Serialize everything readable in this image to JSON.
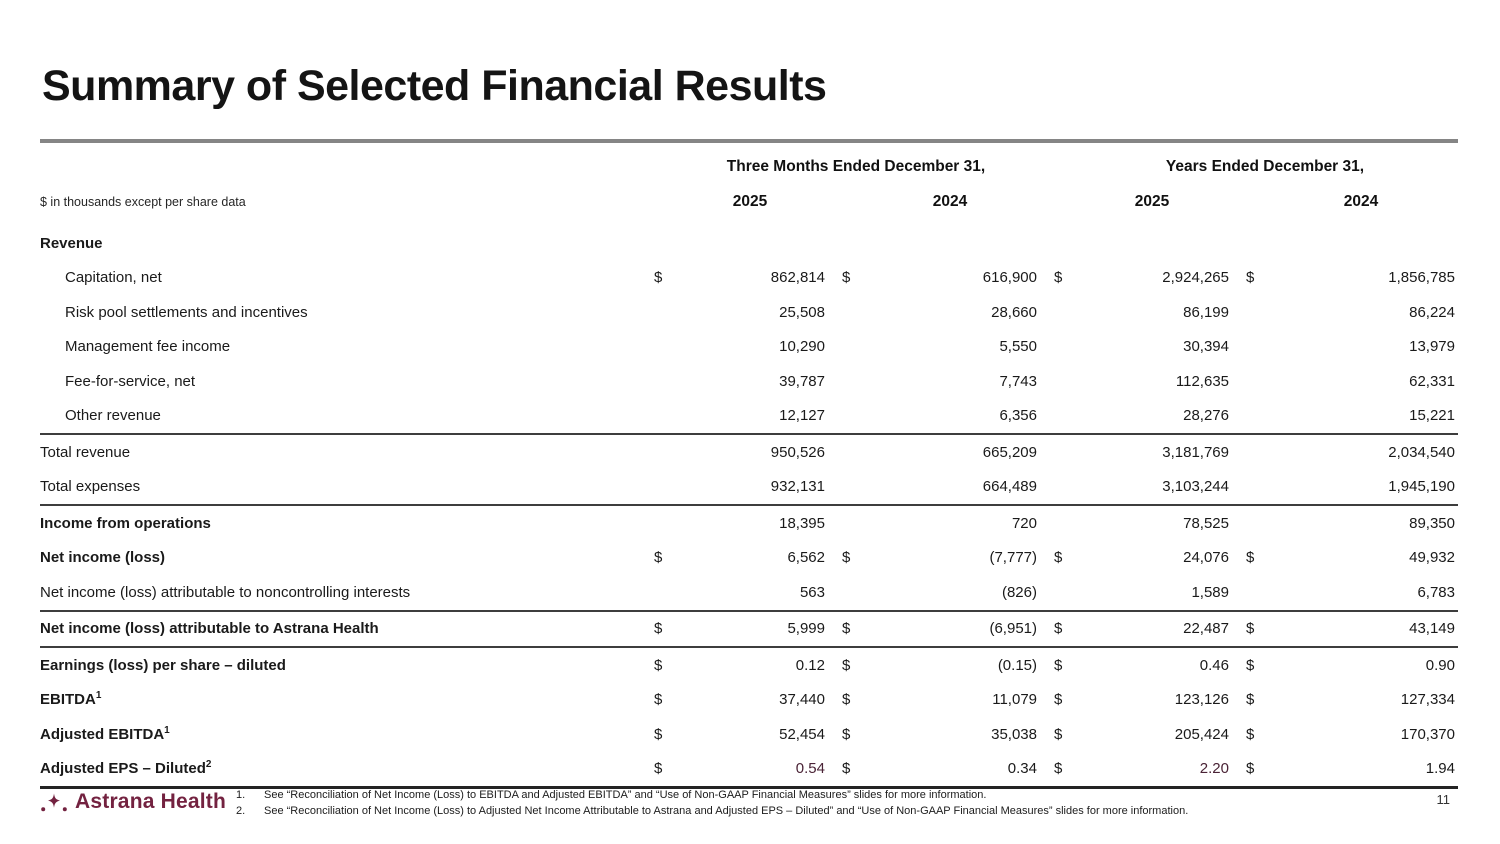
{
  "slide": {
    "title": "Summary of Selected Financial Results",
    "page_number": "11"
  },
  "table": {
    "units_note": "$ in thousands except per share data",
    "currency_symbol": "$",
    "col_groups": [
      {
        "label": "Three Months Ended December 31,",
        "years": [
          "2025",
          "2024"
        ]
      },
      {
        "label": "Years Ended December 31,",
        "years": [
          "2025",
          "2024"
        ]
      }
    ],
    "rows": [
      {
        "label": "Revenue",
        "section": true
      },
      {
        "label": "Capitation, net",
        "indent": true,
        "dollar": true,
        "values": [
          "862,814",
          "616,900",
          "2,924,265",
          "1,856,785"
        ]
      },
      {
        "label": "Risk pool settlements and incentives",
        "indent": true,
        "values": [
          "25,508",
          "28,660",
          "86,199",
          "86,224"
        ]
      },
      {
        "label": "Management fee income",
        "indent": true,
        "values": [
          "10,290",
          "5,550",
          "30,394",
          "13,979"
        ]
      },
      {
        "label": "Fee-for-service, net",
        "indent": true,
        "values": [
          "39,787",
          "7,743",
          "112,635",
          "62,331"
        ]
      },
      {
        "label": "Other revenue",
        "indent": true,
        "values": [
          "12,127",
          "6,356",
          "28,276",
          "15,221"
        ],
        "rule_below": true
      },
      {
        "label": "Total revenue",
        "values": [
          "950,526",
          "665,209",
          "3,181,769",
          "2,034,540"
        ]
      },
      {
        "label": "Total expenses",
        "values": [
          "932,131",
          "664,489",
          "3,103,244",
          "1,945,190"
        ],
        "rule_below": true
      },
      {
        "label": "Income from operations",
        "bold": true,
        "values": [
          "18,395",
          "720",
          "78,525",
          "89,350"
        ]
      },
      {
        "label": "Net income (loss)",
        "bold": true,
        "dollar": true,
        "values": [
          "6,562",
          "(7,777)",
          "24,076",
          "49,932"
        ]
      },
      {
        "label": "Net income (loss) attributable to noncontrolling interests",
        "values": [
          "563",
          "(826)",
          "1,589",
          "6,783"
        ],
        "rule_below": true
      },
      {
        "label": "Net income (loss) attributable to Astrana Health",
        "bold": true,
        "dollar": true,
        "values": [
          "5,999",
          "(6,951)",
          "22,487",
          "43,149"
        ],
        "rule_below": true
      },
      {
        "label": "Earnings (loss) per share – diluted",
        "bold": true,
        "dollar": true,
        "values": [
          "0.12",
          "(0.15)",
          "0.46",
          "0.90"
        ]
      },
      {
        "label": "EBITDA",
        "sup": "1",
        "bold": true,
        "dollar": true,
        "values": [
          "37,440",
          "11,079",
          "123,126",
          "127,334"
        ]
      },
      {
        "label": "Adjusted EBITDA",
        "sup": "1",
        "bold": true,
        "dollar": true,
        "values": [
          "52,454",
          "35,038",
          "205,424",
          "170,370"
        ]
      },
      {
        "label": "Adjusted EPS – Diluted",
        "sup": "2",
        "bold": true,
        "dollar": true,
        "values": [
          "0.54",
          "0.34",
          "2.20",
          "1.94"
        ],
        "highlight_cols": [
          0,
          2
        ],
        "rule_below": true,
        "rule_thick": true
      }
    ]
  },
  "footer": {
    "logo_text": "Astrana Health",
    "footnotes": [
      {
        "num": "1.",
        "text": "See “Reconciliation of Net Income (Loss) to EBITDA and Adjusted EBITDA” and “Use of Non-GAAP Financial Measures” slides for more information."
      },
      {
        "num": "2.",
        "text": "See “Reconciliation of Net Income (Loss) to Adjusted Net Income Attributable to Astrana and Adjusted EPS – Diluted” and “Use of Non-GAAP Financial Measures” slides for more information."
      }
    ]
  },
  "colors": {
    "brand_maroon": "#732240",
    "highlight_value": "#4a2336",
    "rule_dark": "#3d3d3d",
    "title_rule_gray": "#858585"
  }
}
